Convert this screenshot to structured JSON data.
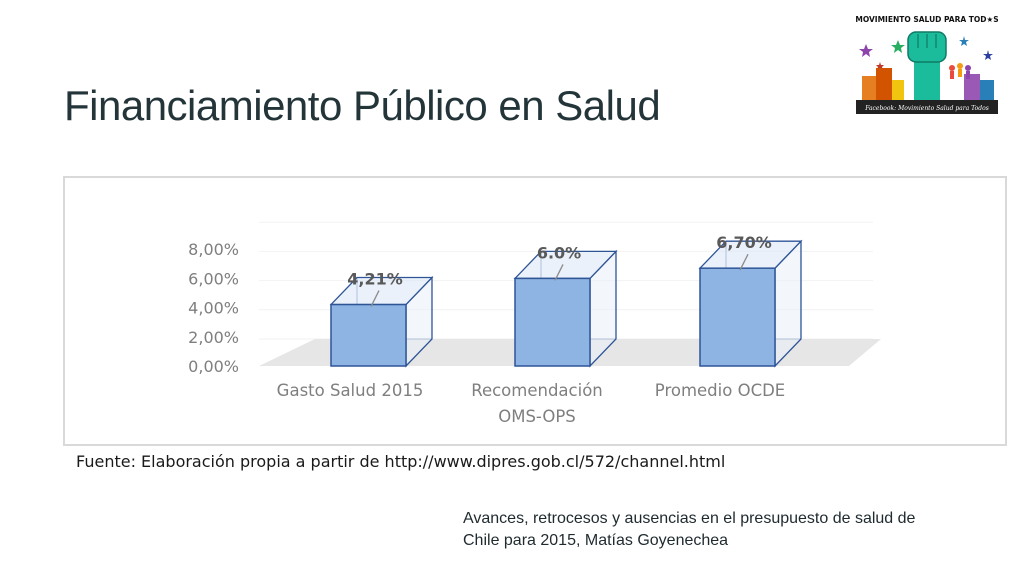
{
  "slide": {
    "title": "Financiamiento Público en Salud",
    "source": "Fuente: Elaboración propia a partir de http://www.dipres.gob.cl/572/channel.html",
    "footnote_line1": "Avances, retrocesos y ausencias en el presupuesto de salud de",
    "footnote_line2": "Chile para 2015, Matías Goyenechea"
  },
  "logo": {
    "header": "MOVIMIENTO SALUD PARA TOD★S",
    "footer": "Facebook: Movimiento Salud para Todos",
    "icon": "raised-fist-icon"
  },
  "colors": {
    "bar_front": "#8eb4e3",
    "bar_top": "#dce8f6",
    "bar_edge": "#2f5597",
    "floor": "#e6e6e6",
    "axis_text": "#7f7f7f",
    "label_text": "#595959"
  },
  "chart_data": {
    "type": "bar",
    "categories": [
      [
        "Gasto Salud 2015"
      ],
      [
        "Recomendación",
        "OMS-OPS"
      ],
      [
        "Promedio OCDE"
      ]
    ],
    "values": [
      4.21,
      6.0,
      6.7
    ],
    "data_labels": [
      "4,21%",
      "6.0%",
      "6,70%"
    ],
    "y_ticks": [
      "0,00%",
      "2,00%",
      "4,00%",
      "6,00%",
      "8,00%"
    ],
    "ylim": [
      0,
      8
    ],
    "title": "",
    "xlabel": "",
    "ylabel": "",
    "style": "3d-column"
  }
}
